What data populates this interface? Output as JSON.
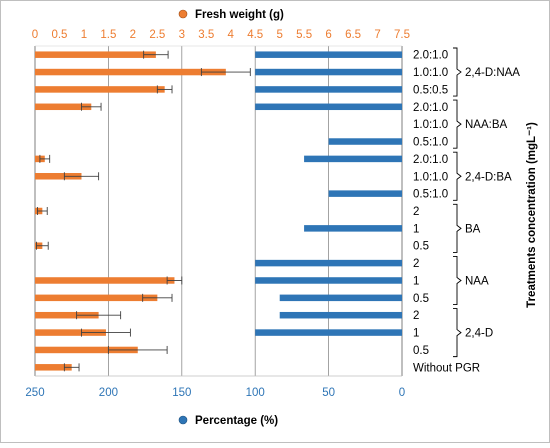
{
  "chart_data": {
    "type": "bar",
    "orientation": "horizontal",
    "grid": true,
    "categories": [
      "2.0:1.0",
      "1.0:1.0",
      "0.5:0.5",
      "2.0:1.0",
      "1.0:1.0",
      "0.5:1.0",
      "2.0:1.0",
      "1.0:1.0",
      "0.5:1.0",
      "2",
      "1",
      "0.5",
      "2",
      "1",
      "0.5",
      "2",
      "1",
      "0.5",
      "Without PGR"
    ],
    "groups": [
      {
        "label": "2,4-D:NAA",
        "rows": [
          0,
          2
        ]
      },
      {
        "label": "NAA:BA",
        "rows": [
          3,
          5
        ]
      },
      {
        "label": "2,4-D:BA",
        "rows": [
          6,
          8
        ]
      },
      {
        "label": "BA",
        "rows": [
          9,
          11
        ]
      },
      {
        "label": "NAA",
        "rows": [
          12,
          14
        ]
      },
      {
        "label": "2,4-D",
        "rows": [
          15,
          17
        ]
      }
    ],
    "top_axis": {
      "label": "Fresh weight (g)",
      "ticks": [
        "0",
        "0.5",
        "1",
        "1.5",
        "2",
        "2.5",
        "3",
        "3.5",
        "4",
        "4.5",
        "5",
        "5.5",
        "6",
        "6.5",
        "7",
        "7.5"
      ],
      "range": [
        0,
        7.5
      ],
      "color": "#ED7D31"
    },
    "bottom_axis": {
      "label": "Percentage (%)",
      "ticks": [
        "250",
        "200",
        "150",
        "100",
        "50",
        "0"
      ],
      "range": [
        250,
        0
      ],
      "color": "#2E75B6"
    },
    "right_axis_label": "Treatments concentration (mgL⁻¹)",
    "series": [
      {
        "name": "Fresh weight (g)",
        "axis": "top",
        "color": "#ED7D31",
        "values": [
          2.47,
          3.9,
          2.65,
          1.15,
          0,
          0,
          0.2,
          0.95,
          0,
          0.15,
          0,
          0.15,
          0,
          2.85,
          2.5,
          1.3,
          1.45,
          2.1,
          0.75
        ],
        "errors": [
          0.25,
          0.5,
          0.15,
          0.2,
          0,
          0,
          0.1,
          0.35,
          0,
          0.1,
          0,
          0.12,
          0,
          0.15,
          0.3,
          0.45,
          0.5,
          0.6,
          0.15
        ]
      },
      {
        "name": "Percentage (%)",
        "axis": "bottom",
        "color": "#2E75B6",
        "values": [
          100,
          100,
          100,
          100,
          0,
          50,
          66.7,
          0,
          50,
          0,
          66.7,
          0,
          100,
          100,
          83.3,
          83.3,
          100,
          0,
          0
        ]
      }
    ]
  }
}
